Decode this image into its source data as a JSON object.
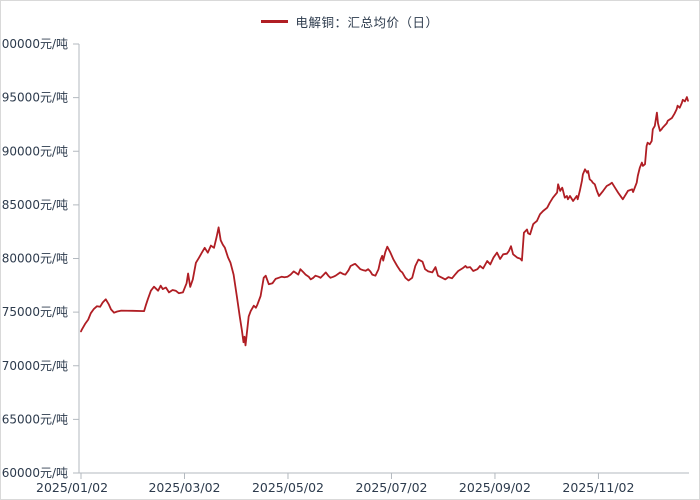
{
  "legend": {
    "label": "电解铜：汇总均价（日）"
  },
  "colors": {
    "line": "#b01e24",
    "axis": "#b3b9bf",
    "text": "#2d3b4d",
    "border": "#d9d9d9",
    "background": "#ffffff"
  },
  "chart_data": {
    "type": "line",
    "title": "电解铜：汇总均价（日）",
    "legend_entries": [
      "电解铜：汇总均价（日）"
    ],
    "legend_position": "top-center",
    "grid": false,
    "xlabel": "",
    "ylabel": "",
    "y_unit": "元/吨",
    "ylim": [
      60000,
      100000
    ],
    "y_tick_step": 5000,
    "y_ticks": [
      60000,
      65000,
      70000,
      75000,
      80000,
      85000,
      90000,
      95000,
      100000
    ],
    "y_tick_labels": [
      "60000元/吨",
      "65000元/吨",
      "70000元/吨",
      "75000元/吨",
      "80000元/吨",
      "85000元/吨",
      "90000元/吨",
      "95000元/吨",
      "100000元/吨"
    ],
    "x_tick_labels": [
      "2025/01/02",
      "2025/03/02",
      "2025/05/02",
      "2025/07/02",
      "2025/09/02",
      "2025/11/02"
    ],
    "x_ticks_months": [
      0,
      2,
      4,
      6,
      8,
      10
    ],
    "xlim_months": [
      0,
      11.75
    ],
    "x_unit": "months since 2025/01/02",
    "series": [
      {
        "name": "电解铜：汇总均价（日）",
        "color": "#b01e24",
        "points": [
          [
            0.0,
            73200
          ],
          [
            0.02,
            73400
          ],
          [
            0.08,
            73900
          ],
          [
            0.14,
            74300
          ],
          [
            0.19,
            74900
          ],
          [
            0.25,
            75300
          ],
          [
            0.31,
            75550
          ],
          [
            0.37,
            75500
          ],
          [
            0.42,
            75900
          ],
          [
            0.48,
            76200
          ],
          [
            0.54,
            75700
          ],
          [
            0.58,
            75250
          ],
          [
            0.64,
            74950
          ],
          [
            0.7,
            75060
          ],
          [
            0.77,
            75130
          ],
          [
            1.0,
            75120
          ],
          [
            1.22,
            75100
          ],
          [
            1.25,
            75600
          ],
          [
            1.29,
            76200
          ],
          [
            1.35,
            77000
          ],
          [
            1.41,
            77370
          ],
          [
            1.49,
            77000
          ],
          [
            1.54,
            77460
          ],
          [
            1.58,
            77150
          ],
          [
            1.64,
            77300
          ],
          [
            1.7,
            76840
          ],
          [
            1.77,
            77060
          ],
          [
            1.83,
            77000
          ],
          [
            1.89,
            76760
          ],
          [
            1.97,
            76840
          ],
          [
            2.04,
            77700
          ],
          [
            2.07,
            78600
          ],
          [
            2.11,
            77350
          ],
          [
            2.16,
            78050
          ],
          [
            2.22,
            79600
          ],
          [
            2.28,
            80070
          ],
          [
            2.33,
            80500
          ],
          [
            2.39,
            81000
          ],
          [
            2.45,
            80540
          ],
          [
            2.51,
            81200
          ],
          [
            2.57,
            81000
          ],
          [
            2.62,
            82000
          ],
          [
            2.66,
            82900
          ],
          [
            2.7,
            81700
          ],
          [
            2.74,
            81300
          ],
          [
            2.78,
            81000
          ],
          [
            2.84,
            80100
          ],
          [
            2.89,
            79600
          ],
          [
            2.95,
            78500
          ],
          [
            3.01,
            76500
          ],
          [
            3.07,
            74500
          ],
          [
            3.11,
            73300
          ],
          [
            3.14,
            72200
          ],
          [
            3.16,
            72700
          ],
          [
            3.18,
            71900
          ],
          [
            3.24,
            74600
          ],
          [
            3.28,
            75100
          ],
          [
            3.34,
            75600
          ],
          [
            3.38,
            75400
          ],
          [
            3.41,
            75700
          ],
          [
            3.47,
            76500
          ],
          [
            3.53,
            78200
          ],
          [
            3.57,
            78400
          ],
          [
            3.63,
            77600
          ],
          [
            3.7,
            77700
          ],
          [
            3.76,
            78100
          ],
          [
            3.82,
            78200
          ],
          [
            3.88,
            78300
          ],
          [
            3.93,
            78250
          ],
          [
            3.99,
            78300
          ],
          [
            4.05,
            78500
          ],
          [
            4.11,
            78800
          ],
          [
            4.17,
            78600
          ],
          [
            4.2,
            78500
          ],
          [
            4.24,
            79000
          ],
          [
            4.3,
            78700
          ],
          [
            4.34,
            78500
          ],
          [
            4.4,
            78300
          ],
          [
            4.44,
            78050
          ],
          [
            4.49,
            78200
          ],
          [
            4.53,
            78400
          ],
          [
            4.59,
            78300
          ],
          [
            4.63,
            78200
          ],
          [
            4.69,
            78500
          ],
          [
            4.73,
            78700
          ],
          [
            4.78,
            78400
          ],
          [
            4.82,
            78200
          ],
          [
            4.88,
            78300
          ],
          [
            4.92,
            78400
          ],
          [
            4.98,
            78600
          ],
          [
            5.01,
            78700
          ],
          [
            5.07,
            78550
          ],
          [
            5.11,
            78500
          ],
          [
            5.17,
            78900
          ],
          [
            5.21,
            79300
          ],
          [
            5.27,
            79450
          ],
          [
            5.3,
            79500
          ],
          [
            5.36,
            79200
          ],
          [
            5.4,
            79000
          ],
          [
            5.46,
            78900
          ],
          [
            5.5,
            78850
          ],
          [
            5.55,
            79000
          ],
          [
            5.59,
            78800
          ],
          [
            5.63,
            78500
          ],
          [
            5.69,
            78400
          ],
          [
            5.75,
            79000
          ],
          [
            5.79,
            79900
          ],
          [
            5.82,
            80250
          ],
          [
            5.84,
            79800
          ],
          [
            5.88,
            80600
          ],
          [
            5.92,
            81100
          ],
          [
            5.98,
            80550
          ],
          [
            6.04,
            79900
          ],
          [
            6.11,
            79300
          ],
          [
            6.17,
            78850
          ],
          [
            6.21,
            78700
          ],
          [
            6.27,
            78200
          ],
          [
            6.33,
            77950
          ],
          [
            6.4,
            78200
          ],
          [
            6.46,
            79300
          ],
          [
            6.52,
            79900
          ],
          [
            6.6,
            79700
          ],
          [
            6.65,
            79000
          ],
          [
            6.71,
            78800
          ],
          [
            6.79,
            78700
          ],
          [
            6.85,
            79200
          ],
          [
            6.9,
            78400
          ],
          [
            6.98,
            78200
          ],
          [
            7.04,
            78050
          ],
          [
            7.1,
            78270
          ],
          [
            7.17,
            78150
          ],
          [
            7.23,
            78500
          ],
          [
            7.29,
            78830
          ],
          [
            7.37,
            79080
          ],
          [
            7.43,
            79300
          ],
          [
            7.46,
            79150
          ],
          [
            7.52,
            79200
          ],
          [
            7.58,
            78830
          ],
          [
            7.66,
            79000
          ],
          [
            7.71,
            79300
          ],
          [
            7.77,
            79080
          ],
          [
            7.85,
            79770
          ],
          [
            7.91,
            79450
          ],
          [
            7.97,
            80070
          ],
          [
            8.04,
            80550
          ],
          [
            8.1,
            79950
          ],
          [
            8.16,
            80390
          ],
          [
            8.23,
            80450
          ],
          [
            8.27,
            80700
          ],
          [
            8.31,
            81150
          ],
          [
            8.35,
            80390
          ],
          [
            8.43,
            80080
          ],
          [
            8.49,
            79980
          ],
          [
            8.52,
            79800
          ],
          [
            8.56,
            82400
          ],
          [
            8.62,
            82700
          ],
          [
            8.64,
            82350
          ],
          [
            8.68,
            82260
          ],
          [
            8.74,
            83200
          ],
          [
            8.77,
            83340
          ],
          [
            8.81,
            83500
          ],
          [
            8.87,
            84120
          ],
          [
            8.93,
            84430
          ],
          [
            9.01,
            84740
          ],
          [
            9.06,
            85200
          ],
          [
            9.12,
            85670
          ],
          [
            9.2,
            86140
          ],
          [
            9.22,
            86920
          ],
          [
            9.26,
            86300
          ],
          [
            9.3,
            86600
          ],
          [
            9.31,
            86450
          ],
          [
            9.35,
            85670
          ],
          [
            9.39,
            85830
          ],
          [
            9.41,
            85520
          ],
          [
            9.45,
            85830
          ],
          [
            9.51,
            85360
          ],
          [
            9.58,
            85830
          ],
          [
            9.6,
            85520
          ],
          [
            9.64,
            86300
          ],
          [
            9.68,
            87230
          ],
          [
            9.7,
            87850
          ],
          [
            9.74,
            88320
          ],
          [
            9.78,
            88000
          ],
          [
            9.8,
            88160
          ],
          [
            9.83,
            87380
          ],
          [
            9.87,
            87230
          ],
          [
            9.89,
            87070
          ],
          [
            9.93,
            86920
          ],
          [
            9.97,
            86300
          ],
          [
            10.01,
            85830
          ],
          [
            10.09,
            86300
          ],
          [
            10.16,
            86760
          ],
          [
            10.22,
            86920
          ],
          [
            10.26,
            87070
          ],
          [
            10.32,
            86600
          ],
          [
            10.38,
            86140
          ],
          [
            10.45,
            85670
          ],
          [
            10.47,
            85520
          ],
          [
            10.55,
            86140
          ],
          [
            10.57,
            86300
          ],
          [
            10.65,
            86450
          ],
          [
            10.67,
            86200
          ],
          [
            10.74,
            87070
          ],
          [
            10.76,
            87700
          ],
          [
            10.8,
            88470
          ],
          [
            10.84,
            88940
          ],
          [
            10.86,
            88630
          ],
          [
            10.9,
            88790
          ],
          [
            10.93,
            90490
          ],
          [
            10.95,
            90800
          ],
          [
            10.99,
            90650
          ],
          [
            11.03,
            90960
          ],
          [
            11.05,
            92050
          ],
          [
            11.09,
            92360
          ],
          [
            11.13,
            93600
          ],
          [
            11.15,
            92600
          ],
          [
            11.19,
            91900
          ],
          [
            11.22,
            92050
          ],
          [
            11.24,
            92200
          ],
          [
            11.32,
            92600
          ],
          [
            11.34,
            92850
          ],
          [
            11.42,
            93100
          ],
          [
            11.47,
            93500
          ],
          [
            11.51,
            93900
          ],
          [
            11.53,
            94250
          ],
          [
            11.57,
            94050
          ],
          [
            11.61,
            94500
          ],
          [
            11.63,
            94800
          ],
          [
            11.67,
            94650
          ],
          [
            11.71,
            95050
          ],
          [
            11.73,
            94700
          ]
        ]
      }
    ]
  }
}
